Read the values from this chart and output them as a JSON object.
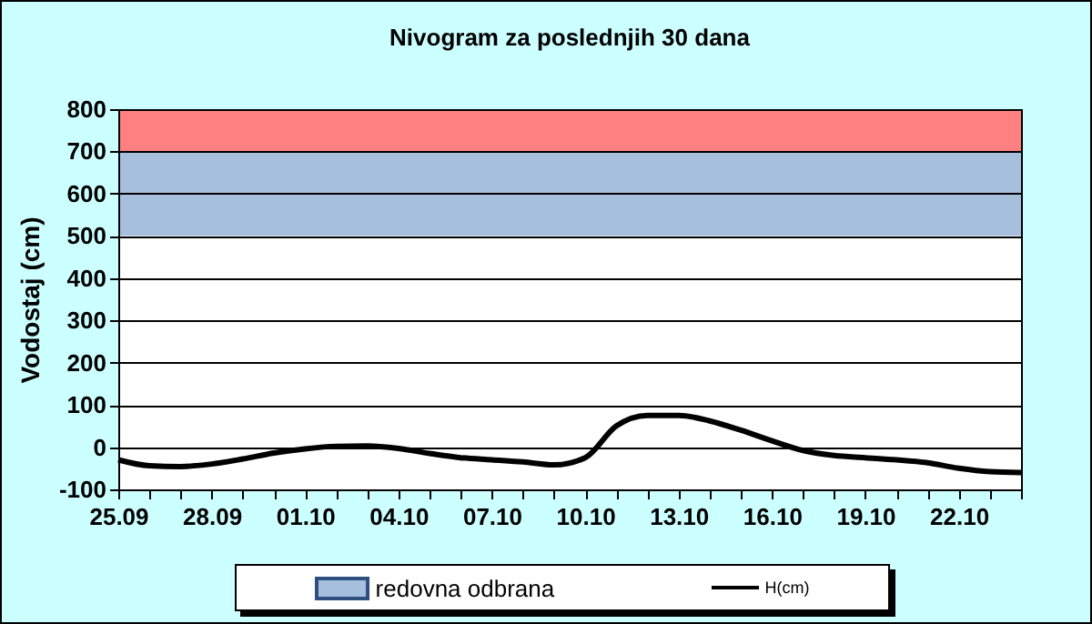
{
  "chart_data": {
    "type": "line",
    "title": "Nivogram za poslednjih 30 dana",
    "ylabel": "Vodostaj (cm)",
    "x": [
      "--09-25",
      "--09-26",
      "--09-27",
      "--09-28",
      "--09-29",
      "--09-30",
      "--10-01",
      "--10-02",
      "--10-03",
      "--10-04",
      "--10-05",
      "--10-06",
      "--10-07",
      "--10-08",
      "--10-09",
      "--10-10",
      "--10-11",
      "--10-12",
      "--10-13",
      "--10-14",
      "--10-15",
      "--10-16",
      "--10-17",
      "--10-18",
      "--10-19",
      "--10-20",
      "--10-21",
      "--10-22",
      "--10-23",
      "--10-24"
    ],
    "series": [
      {
        "name": "H(cm)",
        "color": "#000000",
        "values": [
          -30,
          -44,
          -46,
          -40,
          -28,
          -14,
          -4,
          2,
          3,
          -3,
          -15,
          -25,
          -30,
          -35,
          -42,
          -25,
          50,
          75,
          75,
          62,
          40,
          15,
          -8,
          -20,
          -25,
          -30,
          -37,
          -50,
          -58,
          -60
        ]
      }
    ],
    "xlim": [
      "--09-25",
      "--10-24"
    ],
    "xticks": [
      {
        "value": "--09-25",
        "label": "25.09"
      },
      {
        "value": "--09-26",
        "label": null
      },
      {
        "value": "--09-27",
        "label": null
      },
      {
        "value": "--09-28",
        "label": "28.09"
      },
      {
        "value": "--09-29",
        "label": null
      },
      {
        "value": "--09-30",
        "label": null
      },
      {
        "value": "--10-01",
        "label": "01.10"
      },
      {
        "value": "--10-02",
        "label": null
      },
      {
        "value": "--10-03",
        "label": null
      },
      {
        "value": "--10-04",
        "label": "04.10"
      },
      {
        "value": "--10-05",
        "label": null
      },
      {
        "value": "--10-06",
        "label": null
      },
      {
        "value": "--10-07",
        "label": "07.10"
      },
      {
        "value": "--10-08",
        "label": null
      },
      {
        "value": "--10-09",
        "label": null
      },
      {
        "value": "--10-10",
        "label": "10.10"
      },
      {
        "value": "--10-11",
        "label": null
      },
      {
        "value": "--10-12",
        "label": null
      },
      {
        "value": "--10-13",
        "label": "13.10"
      },
      {
        "value": "--10-14",
        "label": null
      },
      {
        "value": "--10-15",
        "label": null
      },
      {
        "value": "--10-16",
        "label": "16.10"
      },
      {
        "value": "--10-17",
        "label": null
      },
      {
        "value": "--10-18",
        "label": null
      },
      {
        "value": "--10-19",
        "label": "19.10"
      },
      {
        "value": "--10-20",
        "label": null
      },
      {
        "value": "--10-21",
        "label": null
      },
      {
        "value": "--10-22",
        "label": "22.10"
      },
      {
        "value": "--10-23",
        "label": null
      },
      {
        "value": "--10-24",
        "label": null
      }
    ],
    "ylim": [
      -100,
      800
    ],
    "yticks": [
      -100,
      0,
      100,
      200,
      300,
      400,
      500,
      600,
      700,
      800
    ],
    "bands": [
      {
        "axis": "y",
        "from": 500,
        "to": 700,
        "label": "redovna odbrana",
        "color": "#a6bfdd"
      },
      {
        "axis": "y",
        "from": 700,
        "to": 800,
        "color": "#ff8080"
      }
    ],
    "grid": "y",
    "legend": "bottom",
    "line_style": "solid",
    "marker": "none"
  }
}
